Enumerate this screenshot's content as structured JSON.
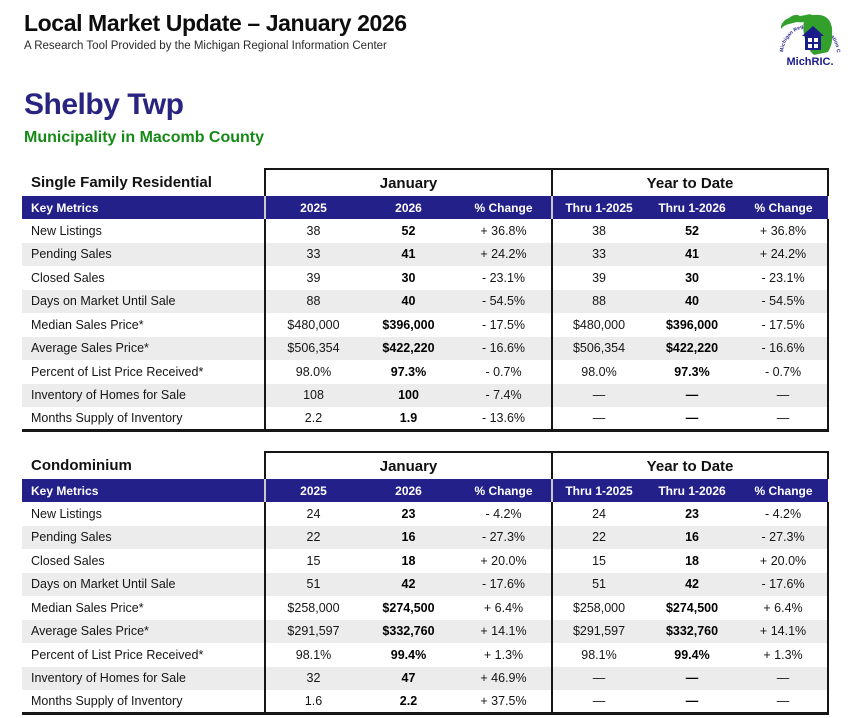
{
  "header": {
    "title": "Local Market Update – January 2026",
    "subtitle": "A Research Tool Provided by the Michigan Regional Information Center",
    "logo": {
      "label": "MichRIC.",
      "arc_text": "Michigan Regional Information Center",
      "green": "#33a02c",
      "blue": "#1b1b8c"
    }
  },
  "location": {
    "name": "Shelby Twp",
    "subtitle": "Municipality in Macomb County"
  },
  "colors": {
    "navy_bar": "#23208a",
    "heading_navy": "#29247f",
    "green": "#168a16",
    "alt_row": "#ececec"
  },
  "columns": {
    "metrics_label": "Key Metrics",
    "january_label": "January",
    "ytd_label": "Year to Date",
    "jan_cols": [
      "2025",
      "2026",
      "% Change"
    ],
    "ytd_cols": [
      "Thru 1-2025",
      "Thru 1-2026",
      "% Change"
    ]
  },
  "tables": [
    {
      "title": "Single Family Residential",
      "rows": [
        {
          "metric": "New Listings",
          "jan": [
            "38",
            "52",
            "+ 36.8%"
          ],
          "ytd": [
            "38",
            "52",
            "+ 36.8%"
          ]
        },
        {
          "metric": "Pending Sales",
          "jan": [
            "33",
            "41",
            "+ 24.2%"
          ],
          "ytd": [
            "33",
            "41",
            "+ 24.2%"
          ]
        },
        {
          "metric": "Closed Sales",
          "jan": [
            "39",
            "30",
            "- 23.1%"
          ],
          "ytd": [
            "39",
            "30",
            "- 23.1%"
          ]
        },
        {
          "metric": "Days on Market Until Sale",
          "jan": [
            "88",
            "40",
            "- 54.5%"
          ],
          "ytd": [
            "88",
            "40",
            "- 54.5%"
          ]
        },
        {
          "metric": "Median Sales Price*",
          "jan": [
            "$480,000",
            "$396,000",
            "- 17.5%"
          ],
          "ytd": [
            "$480,000",
            "$396,000",
            "- 17.5%"
          ]
        },
        {
          "metric": "Average Sales Price*",
          "jan": [
            "$506,354",
            "$422,220",
            "- 16.6%"
          ],
          "ytd": [
            "$506,354",
            "$422,220",
            "- 16.6%"
          ]
        },
        {
          "metric": "Percent of List Price Received*",
          "jan": [
            "98.0%",
            "97.3%",
            "- 0.7%"
          ],
          "ytd": [
            "98.0%",
            "97.3%",
            "- 0.7%"
          ]
        },
        {
          "metric": "Inventory of Homes for Sale",
          "jan": [
            "108",
            "100",
            "- 7.4%"
          ],
          "ytd": [
            "—",
            "—",
            "—"
          ]
        },
        {
          "metric": "Months Supply of Inventory",
          "jan": [
            "2.2",
            "1.9",
            "- 13.6%"
          ],
          "ytd": [
            "—",
            "—",
            "—"
          ]
        }
      ]
    },
    {
      "title": "Condominium",
      "rows": [
        {
          "metric": "New Listings",
          "jan": [
            "24",
            "23",
            "- 4.2%"
          ],
          "ytd": [
            "24",
            "23",
            "- 4.2%"
          ]
        },
        {
          "metric": "Pending Sales",
          "jan": [
            "22",
            "16",
            "- 27.3%"
          ],
          "ytd": [
            "22",
            "16",
            "- 27.3%"
          ]
        },
        {
          "metric": "Closed Sales",
          "jan": [
            "15",
            "18",
            "+ 20.0%"
          ],
          "ytd": [
            "15",
            "18",
            "+ 20.0%"
          ]
        },
        {
          "metric": "Days on Market Until Sale",
          "jan": [
            "51",
            "42",
            "- 17.6%"
          ],
          "ytd": [
            "51",
            "42",
            "- 17.6%"
          ]
        },
        {
          "metric": "Median Sales Price*",
          "jan": [
            "$258,000",
            "$274,500",
            "+ 6.4%"
          ],
          "ytd": [
            "$258,000",
            "$274,500",
            "+ 6.4%"
          ]
        },
        {
          "metric": "Average Sales Price*",
          "jan": [
            "$291,597",
            "$332,760",
            "+ 14.1%"
          ],
          "ytd": [
            "$291,597",
            "$332,760",
            "+ 14.1%"
          ]
        },
        {
          "metric": "Percent of List Price Received*",
          "jan": [
            "98.1%",
            "99.4%",
            "+ 1.3%"
          ],
          "ytd": [
            "98.1%",
            "99.4%",
            "+ 1.3%"
          ]
        },
        {
          "metric": "Inventory of Homes for Sale",
          "jan": [
            "32",
            "47",
            "+ 46.9%"
          ],
          "ytd": [
            "—",
            "—",
            "—"
          ]
        },
        {
          "metric": "Months Supply of Inventory",
          "jan": [
            "1.6",
            "2.2",
            "+ 37.5%"
          ],
          "ytd": [
            "—",
            "—",
            "—"
          ]
        }
      ]
    }
  ]
}
